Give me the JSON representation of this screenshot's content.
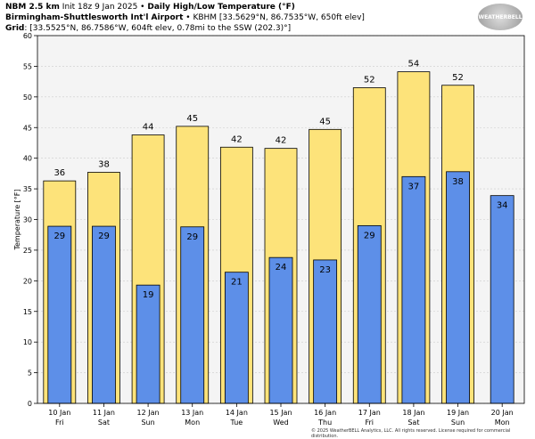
{
  "header": {
    "model": "NBM 2.5 km",
    "init": "Init 18z 9 Jan 2025",
    "title": "Daily High/Low Temperature (°F)",
    "station": "Birmingham-Shuttlesworth Int'l Airport",
    "station_info": "KBHM [33.5629°N, 86.7535°W, 650ft elev]",
    "grid_label": "Grid",
    "grid_info": "[33.5525°N, 86.7586°W, 604ft elev, 0.78mi to the SSW (202.3)°]"
  },
  "logo": "WeatherBELL",
  "copyright": "© 2025 WeatherBELL Analytics, LLC. All rights reserved. License required for commercial distribution.",
  "chart_data": {
    "type": "bar",
    "title": "Daily High/Low Temperature (°F)",
    "ylabel": "Temperature [°F]",
    "ylim": [
      0,
      60
    ],
    "yticks": [
      0,
      5,
      10,
      15,
      20,
      25,
      30,
      35,
      40,
      45,
      50,
      55,
      60
    ],
    "categories": [
      "10 Jan",
      "11 Jan",
      "12 Jan",
      "13 Jan",
      "14 Jan",
      "15 Jan",
      "16 Jan",
      "17 Jan",
      "18 Jan",
      "19 Jan",
      "20 Jan"
    ],
    "days": [
      "Fri",
      "Sat",
      "Sun",
      "Mon",
      "Tue",
      "Wed",
      "Thu",
      "Fri",
      "Sat",
      "Sun",
      "Mon"
    ],
    "series": [
      {
        "name": "High",
        "color": "#fde37a",
        "values": [
          36.3,
          37.7,
          43.8,
          45.2,
          41.8,
          41.6,
          44.7,
          51.5,
          54.1,
          51.9,
          null
        ],
        "labels": [
          "36",
          "38",
          "44",
          "45",
          "42",
          "42",
          "45",
          "52",
          "54",
          "52",
          ""
        ]
      },
      {
        "name": "Low",
        "color": "#5d8fe8",
        "values": [
          28.9,
          28.9,
          19.3,
          28.8,
          21.4,
          23.8,
          23.4,
          29.0,
          37.0,
          37.8,
          33.9
        ],
        "labels": [
          "29",
          "29",
          "19",
          "29",
          "21",
          "24",
          "23",
          "29",
          "37",
          "38",
          "34"
        ]
      }
    ],
    "grid": true
  }
}
